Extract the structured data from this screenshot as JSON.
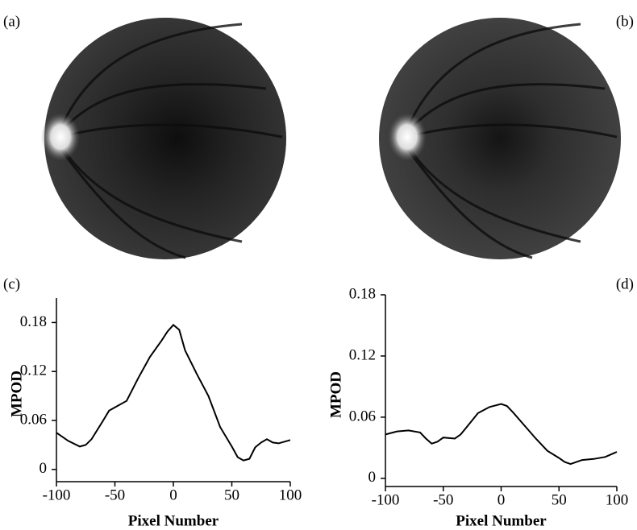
{
  "panel_labels": [
    "(a)",
    "(b)",
    "(c)",
    "(d)"
  ],
  "chart_data": [
    {
      "type": "line",
      "xlabel": "Pixel Number",
      "ylabel": "MPOD",
      "color": "#000000",
      "x": [
        -100,
        -90,
        -80,
        -75,
        -70,
        -60,
        -55,
        -50,
        -40,
        -30,
        -20,
        -10,
        -5,
        0,
        5,
        10,
        20,
        30,
        40,
        50,
        55,
        60,
        65,
        70,
        75,
        80,
        85,
        90,
        100
      ],
      "values": [
        0.045,
        0.035,
        0.028,
        0.03,
        0.037,
        0.06,
        0.072,
        0.076,
        0.084,
        0.112,
        0.138,
        0.158,
        0.169,
        0.177,
        0.171,
        0.146,
        0.117,
        0.09,
        0.052,
        0.028,
        0.015,
        0.011,
        0.013,
        0.027,
        0.033,
        0.037,
        0.033,
        0.032,
        0.036
      ],
      "xlim": [
        -100,
        100
      ],
      "xticks": [
        -100,
        -50,
        0,
        50,
        100
      ],
      "ylim": [
        -0.015,
        0.21
      ],
      "yticks": [
        0,
        0.06,
        0.12,
        0.18
      ]
    },
    {
      "type": "line",
      "xlabel": "Pixel Number",
      "ylabel": "MPOD",
      "color": "#000000",
      "x": [
        -100,
        -90,
        -80,
        -70,
        -65,
        -60,
        -55,
        -50,
        -40,
        -35,
        -30,
        -20,
        -10,
        0,
        5,
        10,
        20,
        30,
        40,
        50,
        55,
        60,
        65,
        70,
        80,
        90,
        100
      ],
      "values": [
        0.043,
        0.046,
        0.047,
        0.045,
        0.039,
        0.034,
        0.036,
        0.04,
        0.039,
        0.043,
        0.05,
        0.064,
        0.07,
        0.073,
        0.071,
        0.065,
        0.052,
        0.039,
        0.027,
        0.02,
        0.016,
        0.014,
        0.016,
        0.018,
        0.019,
        0.021,
        0.026
      ],
      "xlim": [
        -100,
        100
      ],
      "xticks": [
        -100,
        -50,
        0,
        50,
        100
      ],
      "ylim": [
        -0.008,
        0.18
      ],
      "yticks": [
        0,
        0.06,
        0.12,
        0.18
      ]
    }
  ]
}
